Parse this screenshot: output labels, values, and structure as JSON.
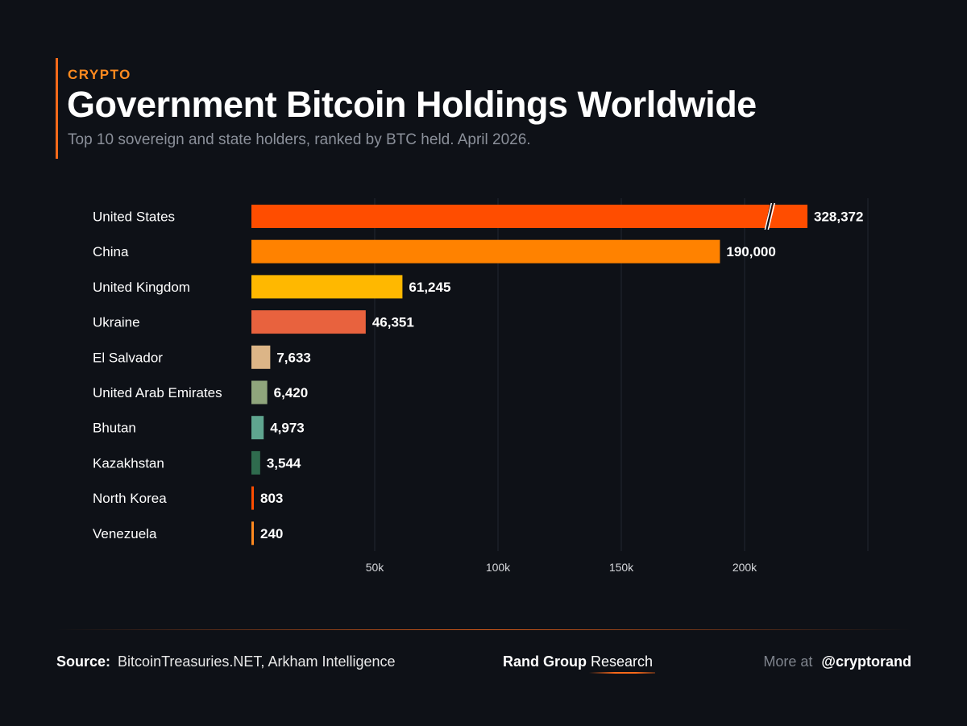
{
  "header": {
    "kicker": "CRYPTO",
    "title": "Government Bitcoin Holdings Worldwide",
    "subtitle": "Top 10 sovereign and state holders, ranked by BTC held. April 2026."
  },
  "chart_data": {
    "type": "bar",
    "orientation": "horizontal",
    "categories": [
      "United States",
      "China",
      "United Kingdom",
      "Ukraine",
      "El Salvador",
      "United Arab Emirates",
      "Bhutan",
      "Kazakhstan",
      "North Korea",
      "Venezuela"
    ],
    "values": [
      328372,
      190000,
      61245,
      46351,
      7633,
      6420,
      4973,
      3544,
      803,
      240
    ],
    "value_labels": [
      "328,372",
      "190,000",
      "61,245",
      "46,351",
      "7,633",
      "6,420",
      "4,973",
      "3,544",
      "803",
      "240"
    ],
    "colors": [
      "#ff4d00",
      "#ff8200",
      "#ffb800",
      "#e8623e",
      "#dcb587",
      "#8fa57c",
      "#5fa58f",
      "#2f6b4e",
      "#ff4d00",
      "#ff8a1f"
    ],
    "x_ticks": [
      50000,
      100000,
      150000,
      200000
    ],
    "x_tick_labels": [
      "50k",
      "100k",
      "150k",
      "200k"
    ],
    "xlim": [
      0,
      250000
    ],
    "axis_break": true,
    "grid": true,
    "title": "",
    "xlabel": "",
    "ylabel": ""
  },
  "footer": {
    "source_label": "Source:",
    "source_value": "BitcoinTreasuries.NET, Arkham Intelligence",
    "brand_name": "Rand Group",
    "brand_suffix": "Research",
    "more_label": "More at",
    "handle": "@cryptorand"
  }
}
